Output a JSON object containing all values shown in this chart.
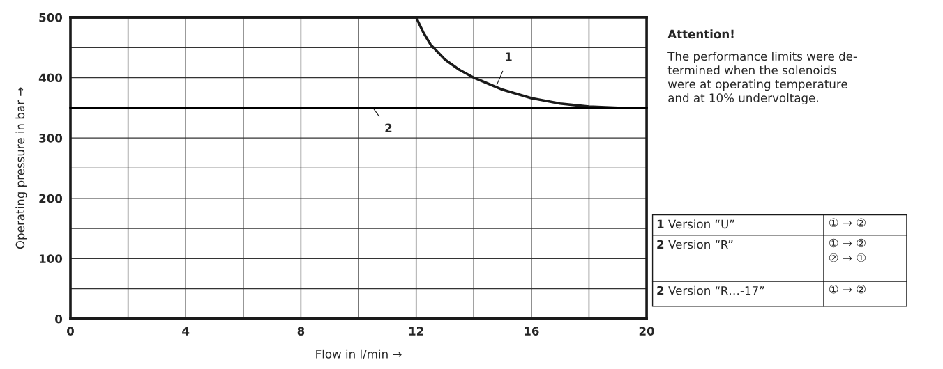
{
  "chart_data": {
    "type": "line",
    "xlabel": "Flow in l/min →",
    "ylabel": "Operating pressure in bar →",
    "series": [
      {
        "color": "#1a1a1a",
        "x": [
          0,
          12,
          12.25,
          12.5,
          13,
          13.5,
          14,
          15,
          16,
          17,
          18,
          19,
          20
        ],
        "values": [
          500,
          500,
          475,
          455,
          430,
          413,
          400,
          380,
          366,
          357,
          352,
          350,
          350
        ]
      },
      {
        "color": "#000000",
        "x": [
          0,
          20
        ],
        "values": [
          350,
          350
        ]
      }
    ],
    "xlim": [
      0,
      20
    ],
    "ylim": [
      0,
      500
    ],
    "xticks": [
      0,
      {
        "value": 2,
        "label": null
      },
      4,
      {
        "value": 6,
        "label": null
      },
      8,
      {
        "value": 10,
        "label": null
      },
      12,
      {
        "value": 14,
        "label": null
      },
      16,
      {
        "value": 18,
        "label": null
      },
      20
    ],
    "yticks": [
      0,
      {
        "value": 50,
        "label": null
      },
      100,
      {
        "value": 150,
        "label": null
      },
      200,
      {
        "value": 250,
        "label": null
      },
      300,
      {
        "value": 350,
        "label": null
      },
      400,
      {
        "value": 450,
        "label": null
      },
      500
    ],
    "grid": true,
    "legend": false,
    "marker": "none",
    "line_style": "solid",
    "annotations": [
      {
        "text": "1",
        "x": 14.8,
        "y": 388
      },
      {
        "text": "2",
        "x": 10.5,
        "y": 350
      },
      "Attention!",
      "The performance limits were de-\ntermined when the solenoids\nwere at operating temperature\nand at 10% undervoltage.",
      "1 Version “U”",
      "① → ②",
      "2 Version “R”",
      "① → ②\n② → ①",
      "2 Version “R…-17”",
      "① → ②"
    ]
  }
}
